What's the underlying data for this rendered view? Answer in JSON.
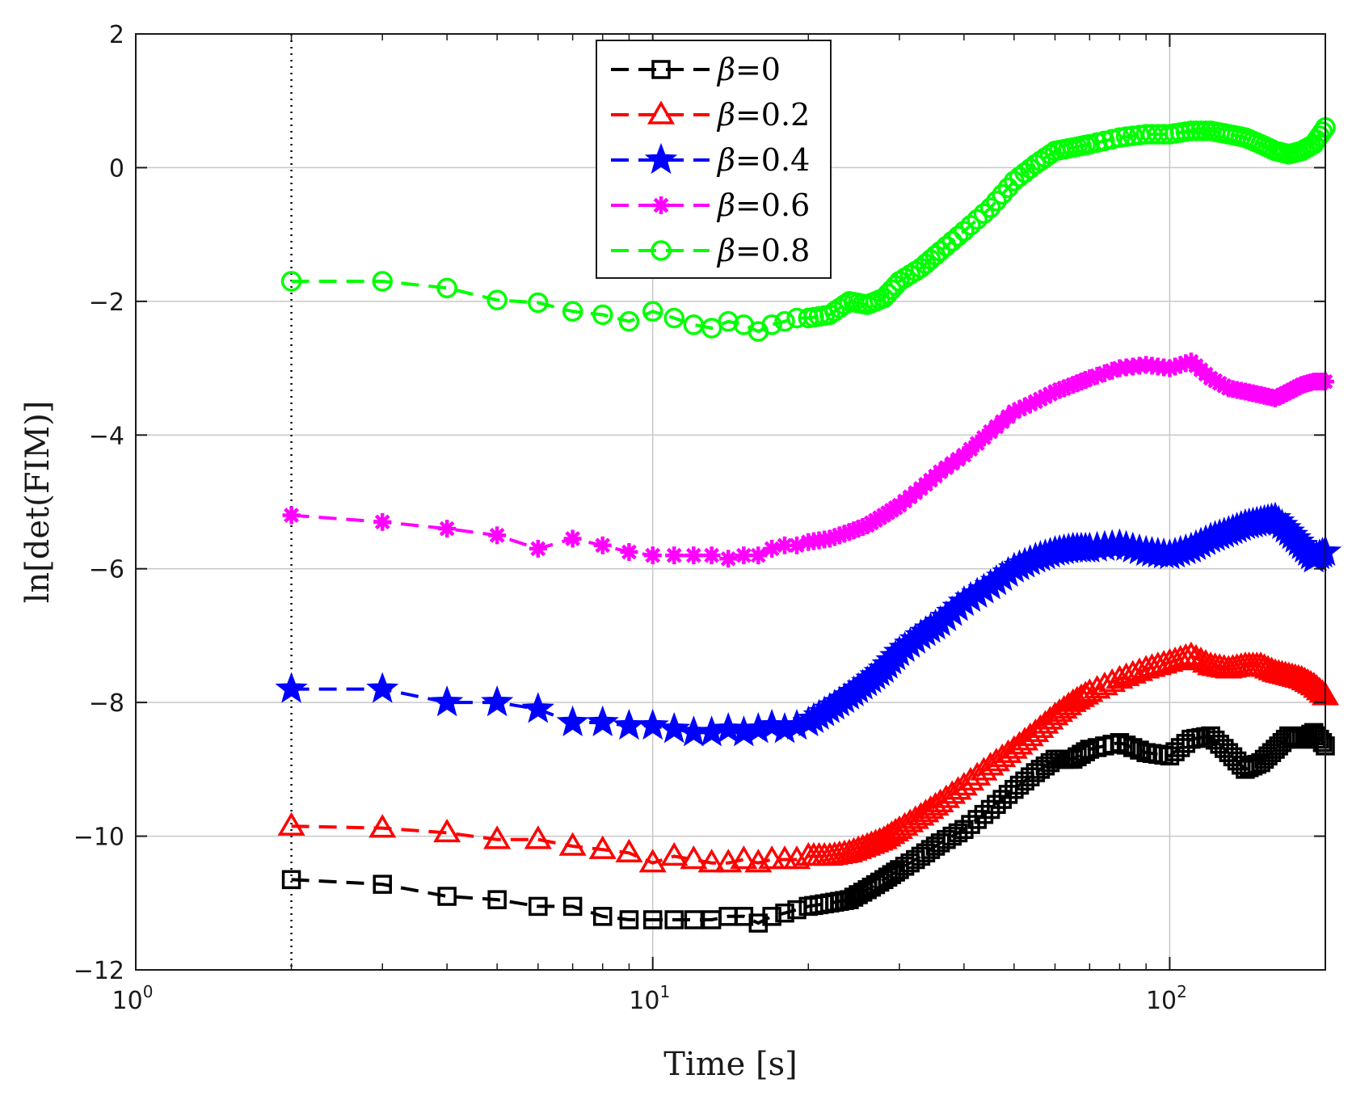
{
  "chart_data": {
    "type": "line",
    "title": "",
    "xlabel": "Time [s]",
    "ylabel": "ln[det(FIM)]",
    "xscale": "log",
    "xlim": [
      1,
      200
    ],
    "ylim": [
      -12,
      2
    ],
    "x_ticks": [
      {
        "value": 1,
        "base": "10",
        "exp": "0"
      },
      {
        "value": 10,
        "base": "10",
        "exp": "1"
      },
      {
        "value": 100,
        "base": "10",
        "exp": "2"
      }
    ],
    "y_ticks": [
      {
        "value": 2,
        "label": "2"
      },
      {
        "value": 0,
        "label": "0"
      },
      {
        "value": -2,
        "label": "−2"
      },
      {
        "value": -4,
        "label": "−4"
      },
      {
        "value": -6,
        "label": "−6"
      },
      {
        "value": -8,
        "label": "−8"
      },
      {
        "value": -10,
        "label": "−10"
      },
      {
        "value": -12,
        "label": "−12"
      }
    ],
    "grid": true,
    "legend_position": "top-center",
    "annotations": [
      {
        "type": "vertical-dotted-line",
        "x": 2
      }
    ],
    "series": [
      {
        "name": "β=0",
        "beta_symbol": "β",
        "beta_value": "=0",
        "color": "#000000",
        "marker": "square",
        "x": [
          2,
          3,
          4,
          5,
          6,
          7,
          8,
          9,
          10,
          11,
          12,
          13,
          14,
          15,
          16,
          17,
          18,
          19,
          20,
          22,
          24,
          26,
          28,
          30,
          33,
          36,
          40,
          45,
          50,
          55,
          60,
          65,
          70,
          80,
          90,
          100,
          110,
          120,
          130,
          140,
          150,
          160,
          170,
          180,
          190,
          200
        ],
        "y": [
          -10.65,
          -10.72,
          -10.9,
          -10.95,
          -11.05,
          -11.05,
          -11.2,
          -11.25,
          -11.25,
          -11.25,
          -11.25,
          -11.25,
          -11.2,
          -11.2,
          -11.3,
          -11.2,
          -11.15,
          -11.1,
          -11.05,
          -11.0,
          -10.95,
          -10.8,
          -10.65,
          -10.5,
          -10.3,
          -10.1,
          -9.9,
          -9.6,
          -9.3,
          -9.05,
          -8.85,
          -8.85,
          -8.7,
          -8.6,
          -8.75,
          -8.8,
          -8.55,
          -8.5,
          -8.75,
          -9.0,
          -8.9,
          -8.7,
          -8.5,
          -8.55,
          -8.45,
          -8.65
        ]
      },
      {
        "name": "β=0.2",
        "beta_symbol": "β",
        "beta_value": "=0.2",
        "color": "#ff0000",
        "marker": "triangle",
        "x": [
          2,
          3,
          4,
          5,
          6,
          7,
          8,
          9,
          10,
          11,
          12,
          13,
          14,
          15,
          16,
          17,
          18,
          19,
          20,
          22,
          24,
          26,
          28,
          30,
          33,
          36,
          40,
          45,
          50,
          55,
          60,
          65,
          70,
          80,
          90,
          100,
          110,
          120,
          130,
          140,
          150,
          160,
          170,
          180,
          190,
          200
        ],
        "y": [
          -9.85,
          -9.88,
          -9.95,
          -10.05,
          -10.05,
          -10.15,
          -10.2,
          -10.25,
          -10.4,
          -10.3,
          -10.35,
          -10.4,
          -10.4,
          -10.35,
          -10.4,
          -10.35,
          -10.35,
          -10.35,
          -10.3,
          -10.3,
          -10.25,
          -10.15,
          -10.05,
          -9.9,
          -9.7,
          -9.5,
          -9.25,
          -8.95,
          -8.7,
          -8.45,
          -8.2,
          -8.0,
          -7.85,
          -7.65,
          -7.5,
          -7.4,
          -7.3,
          -7.45,
          -7.5,
          -7.45,
          -7.45,
          -7.55,
          -7.6,
          -7.65,
          -7.75,
          -7.9
        ]
      },
      {
        "name": "β=0.4",
        "beta_symbol": "β",
        "beta_value": "=0.4",
        "color": "#0000ff",
        "marker": "star",
        "x": [
          2,
          3,
          4,
          5,
          6,
          7,
          8,
          9,
          10,
          11,
          12,
          13,
          14,
          15,
          16,
          17,
          18,
          19,
          20,
          22,
          24,
          26,
          28,
          30,
          33,
          36,
          40,
          45,
          50,
          55,
          60,
          65,
          70,
          80,
          90,
          100,
          110,
          120,
          130,
          140,
          150,
          160,
          170,
          180,
          190,
          200
        ],
        "y": [
          -7.8,
          -7.8,
          -8.0,
          -8.0,
          -8.1,
          -8.3,
          -8.3,
          -8.35,
          -8.35,
          -8.4,
          -8.45,
          -8.45,
          -8.4,
          -8.45,
          -8.4,
          -8.35,
          -8.4,
          -8.35,
          -8.3,
          -8.1,
          -7.9,
          -7.7,
          -7.5,
          -7.25,
          -7.0,
          -6.8,
          -6.5,
          -6.25,
          -6.0,
          -5.85,
          -5.75,
          -5.7,
          -5.7,
          -5.65,
          -5.75,
          -5.8,
          -5.7,
          -5.55,
          -5.45,
          -5.35,
          -5.3,
          -5.25,
          -5.45,
          -5.65,
          -5.85,
          -5.75
        ]
      },
      {
        "name": "β=0.6",
        "beta_symbol": "β",
        "beta_value": "=0.6",
        "color": "#ff00ff",
        "marker": "asterisk",
        "x": [
          2,
          3,
          4,
          5,
          6,
          7,
          8,
          9,
          10,
          11,
          12,
          13,
          14,
          15,
          16,
          17,
          18,
          19,
          20,
          22,
          24,
          26,
          28,
          30,
          33,
          36,
          40,
          45,
          50,
          55,
          60,
          65,
          70,
          80,
          90,
          100,
          110,
          120,
          130,
          140,
          150,
          160,
          170,
          180,
          190,
          200
        ],
        "y": [
          -5.2,
          -5.3,
          -5.4,
          -5.5,
          -5.7,
          -5.55,
          -5.65,
          -5.75,
          -5.8,
          -5.8,
          -5.8,
          -5.8,
          -5.85,
          -5.8,
          -5.8,
          -5.7,
          -5.65,
          -5.65,
          -5.6,
          -5.55,
          -5.45,
          -5.35,
          -5.2,
          -5.05,
          -4.8,
          -4.55,
          -4.3,
          -3.95,
          -3.65,
          -3.5,
          -3.35,
          -3.25,
          -3.15,
          -3.0,
          -2.95,
          -3.0,
          -2.9,
          -3.15,
          -3.3,
          -3.35,
          -3.4,
          -3.45,
          -3.35,
          -3.25,
          -3.2,
          -3.2
        ]
      },
      {
        "name": "β=0.8",
        "beta_symbol": "β",
        "beta_value": "=0.8",
        "color": "#00ff00",
        "marker": "circle",
        "x": [
          2,
          3,
          4,
          5,
          6,
          7,
          8,
          9,
          10,
          11,
          12,
          13,
          14,
          15,
          16,
          17,
          18,
          19,
          20,
          22,
          24,
          26,
          28,
          30,
          33,
          36,
          40,
          45,
          50,
          55,
          60,
          65,
          70,
          80,
          90,
          100,
          110,
          120,
          130,
          140,
          150,
          160,
          170,
          180,
          190,
          200
        ],
        "y": [
          -1.7,
          -1.7,
          -1.8,
          -1.98,
          -2.02,
          -2.15,
          -2.2,
          -2.3,
          -2.15,
          -2.25,
          -2.35,
          -2.4,
          -2.3,
          -2.35,
          -2.45,
          -2.35,
          -2.3,
          -2.25,
          -2.25,
          -2.2,
          -2.0,
          -2.05,
          -1.95,
          -1.7,
          -1.5,
          -1.25,
          -0.95,
          -0.6,
          -0.2,
          0.05,
          0.25,
          0.3,
          0.35,
          0.45,
          0.5,
          0.5,
          0.55,
          0.55,
          0.5,
          0.45,
          0.35,
          0.25,
          0.2,
          0.25,
          0.35,
          0.6
        ]
      }
    ]
  }
}
